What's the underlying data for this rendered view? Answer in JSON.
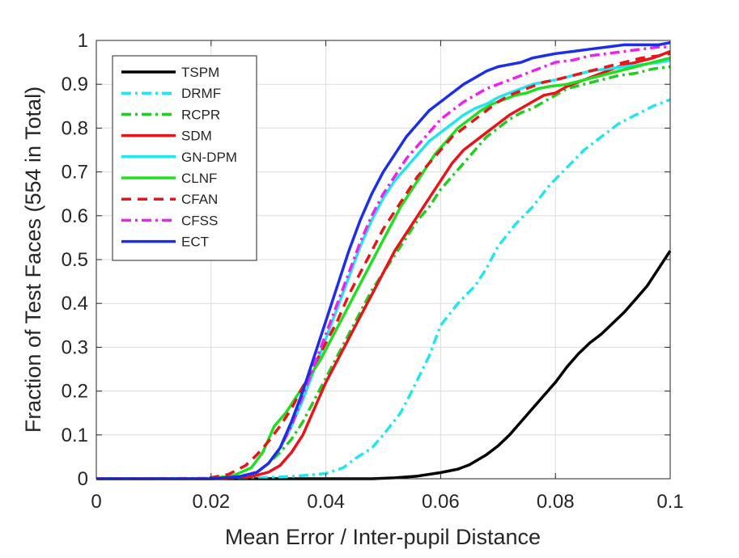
{
  "chart_data": {
    "type": "line",
    "xlabel": "Mean Error / Inter-pupil Distance",
    "ylabel": "Fraction of Test Faces (554 in Total)",
    "xlim": [
      0,
      0.1
    ],
    "ylim": [
      0,
      1
    ],
    "xticks": [
      0,
      0.02,
      0.04,
      0.06,
      0.08,
      0.1
    ],
    "xtick_labels": [
      "0",
      "0.02",
      "0.04",
      "0.06",
      "0.08",
      "0.1"
    ],
    "yticks": [
      0,
      0.1,
      0.2,
      0.3,
      0.4,
      0.5,
      0.6,
      0.7,
      0.8,
      0.9,
      1
    ],
    "ytick_labels": [
      "0",
      "0.1",
      "0.2",
      "0.3",
      "0.4",
      "0.5",
      "0.6",
      "0.7",
      "0.8",
      "0.9",
      "1"
    ],
    "grid": true,
    "legend_position": "top-left",
    "series": [
      {
        "name": "TSPM",
        "color": "#000000",
        "dash": "solid",
        "x": [
          0,
          0.048,
          0.052,
          0.056,
          0.06,
          0.063,
          0.065,
          0.068,
          0.07,
          0.072,
          0.074,
          0.076,
          0.078,
          0.08,
          0.082,
          0.084,
          0.086,
          0.088,
          0.09,
          0.092,
          0.094,
          0.096,
          0.098,
          0.1
        ],
        "y": [
          0,
          0,
          0.002,
          0.006,
          0.014,
          0.022,
          0.032,
          0.055,
          0.075,
          0.1,
          0.13,
          0.16,
          0.19,
          0.22,
          0.255,
          0.285,
          0.31,
          0.33,
          0.355,
          0.38,
          0.41,
          0.44,
          0.48,
          0.52
        ]
      },
      {
        "name": "DRMF",
        "color": "#22e5f0",
        "dash": "dashdot",
        "x": [
          0,
          0.028,
          0.035,
          0.04,
          0.043,
          0.045,
          0.048,
          0.05,
          0.053,
          0.055,
          0.058,
          0.06,
          0.063,
          0.066,
          0.068,
          0.07,
          0.073,
          0.076,
          0.079,
          0.082,
          0.085,
          0.088,
          0.091,
          0.094,
          0.097,
          0.1
        ],
        "y": [
          0,
          0.002,
          0.006,
          0.012,
          0.025,
          0.045,
          0.07,
          0.1,
          0.15,
          0.2,
          0.28,
          0.35,
          0.4,
          0.44,
          0.48,
          0.53,
          0.58,
          0.62,
          0.67,
          0.71,
          0.75,
          0.78,
          0.81,
          0.83,
          0.85,
          0.865
        ]
      },
      {
        "name": "RCPR",
        "color": "#22cc22",
        "dash": "dashdot",
        "x": [
          0,
          0.02,
          0.025,
          0.028,
          0.03,
          0.032,
          0.034,
          0.036,
          0.038,
          0.04,
          0.042,
          0.044,
          0.046,
          0.048,
          0.05,
          0.052,
          0.054,
          0.056,
          0.058,
          0.06,
          0.062,
          0.064,
          0.066,
          0.068,
          0.07,
          0.072,
          0.074,
          0.076,
          0.078,
          0.08,
          0.082,
          0.085,
          0.088,
          0.091,
          0.094,
          0.097,
          0.1
        ],
        "y": [
          0,
          0,
          0.005,
          0.015,
          0.035,
          0.06,
          0.09,
          0.13,
          0.18,
          0.23,
          0.28,
          0.33,
          0.38,
          0.43,
          0.47,
          0.51,
          0.55,
          0.59,
          0.62,
          0.66,
          0.69,
          0.72,
          0.75,
          0.78,
          0.8,
          0.82,
          0.835,
          0.845,
          0.86,
          0.875,
          0.89,
          0.9,
          0.91,
          0.92,
          0.925,
          0.935,
          0.94
        ]
      },
      {
        "name": "SDM",
        "color": "#e8141a",
        "dash": "solid",
        "x": [
          0,
          0.022,
          0.027,
          0.03,
          0.032,
          0.034,
          0.036,
          0.038,
          0.04,
          0.042,
          0.044,
          0.046,
          0.048,
          0.05,
          0.052,
          0.054,
          0.056,
          0.058,
          0.06,
          0.062,
          0.064,
          0.066,
          0.068,
          0.07,
          0.072,
          0.074,
          0.076,
          0.078,
          0.08,
          0.082,
          0.085,
          0.088,
          0.091,
          0.094,
          0.097,
          0.1
        ],
        "y": [
          0,
          0,
          0.005,
          0.015,
          0.03,
          0.06,
          0.1,
          0.16,
          0.22,
          0.27,
          0.32,
          0.37,
          0.42,
          0.47,
          0.52,
          0.56,
          0.6,
          0.64,
          0.68,
          0.72,
          0.75,
          0.77,
          0.79,
          0.81,
          0.83,
          0.845,
          0.86,
          0.875,
          0.88,
          0.895,
          0.91,
          0.925,
          0.94,
          0.95,
          0.96,
          0.975
        ]
      },
      {
        "name": "GN-DPM",
        "color": "#22e5f0",
        "dash": "solid",
        "x": [
          0,
          0.02,
          0.025,
          0.028,
          0.03,
          0.032,
          0.034,
          0.036,
          0.038,
          0.04,
          0.042,
          0.044,
          0.046,
          0.048,
          0.05,
          0.052,
          0.054,
          0.056,
          0.058,
          0.06,
          0.062,
          0.064,
          0.066,
          0.068,
          0.07,
          0.072,
          0.074,
          0.076,
          0.078,
          0.08,
          0.083,
          0.086,
          0.089,
          0.092,
          0.095,
          0.098,
          0.1
        ],
        "y": [
          0,
          0,
          0.005,
          0.015,
          0.035,
          0.07,
          0.12,
          0.18,
          0.25,
          0.32,
          0.39,
          0.46,
          0.53,
          0.59,
          0.64,
          0.68,
          0.71,
          0.74,
          0.77,
          0.79,
          0.81,
          0.83,
          0.845,
          0.855,
          0.87,
          0.88,
          0.89,
          0.9,
          0.905,
          0.91,
          0.92,
          0.93,
          0.935,
          0.94,
          0.945,
          0.95,
          0.955
        ]
      },
      {
        "name": "CLNF",
        "color": "#22dd22",
        "dash": "solid",
        "x": [
          0,
          0.02,
          0.024,
          0.027,
          0.029,
          0.031,
          0.033,
          0.035,
          0.037,
          0.039,
          0.041,
          0.043,
          0.045,
          0.047,
          0.049,
          0.051,
          0.053,
          0.055,
          0.057,
          0.059,
          0.061,
          0.063,
          0.065,
          0.067,
          0.069,
          0.071,
          0.073,
          0.075,
          0.077,
          0.079,
          0.082,
          0.085,
          0.088,
          0.091,
          0.094,
          0.097,
          0.1
        ],
        "y": [
          0,
          0,
          0.008,
          0.025,
          0.06,
          0.12,
          0.15,
          0.19,
          0.23,
          0.27,
          0.32,
          0.37,
          0.42,
          0.47,
          0.52,
          0.57,
          0.62,
          0.66,
          0.7,
          0.74,
          0.77,
          0.8,
          0.82,
          0.84,
          0.855,
          0.865,
          0.875,
          0.88,
          0.89,
          0.895,
          0.9,
          0.91,
          0.92,
          0.93,
          0.94,
          0.95,
          0.96
        ]
      },
      {
        "name": "CFAN",
        "color": "#e8141a",
        "dash": "dash",
        "x": [
          0,
          0.019,
          0.023,
          0.026,
          0.028,
          0.03,
          0.032,
          0.034,
          0.036,
          0.038,
          0.04,
          0.042,
          0.044,
          0.046,
          0.048,
          0.05,
          0.052,
          0.054,
          0.056,
          0.058,
          0.06,
          0.062,
          0.064,
          0.066,
          0.068,
          0.07,
          0.072,
          0.074,
          0.076,
          0.078,
          0.08,
          0.083,
          0.086,
          0.089,
          0.092,
          0.095,
          0.098,
          0.1
        ],
        "y": [
          0,
          0,
          0.01,
          0.03,
          0.055,
          0.085,
          0.12,
          0.16,
          0.21,
          0.26,
          0.31,
          0.36,
          0.42,
          0.47,
          0.52,
          0.57,
          0.61,
          0.65,
          0.69,
          0.72,
          0.75,
          0.78,
          0.8,
          0.82,
          0.84,
          0.86,
          0.875,
          0.885,
          0.895,
          0.905,
          0.91,
          0.92,
          0.93,
          0.94,
          0.95,
          0.96,
          0.965,
          0.97
        ]
      },
      {
        "name": "CFSS",
        "color": "#ee22ee",
        "dash": "dashdot",
        "x": [
          0,
          0.02,
          0.025,
          0.028,
          0.03,
          0.032,
          0.034,
          0.036,
          0.038,
          0.04,
          0.042,
          0.044,
          0.046,
          0.048,
          0.05,
          0.052,
          0.054,
          0.056,
          0.058,
          0.06,
          0.062,
          0.064,
          0.066,
          0.068,
          0.07,
          0.072,
          0.074,
          0.076,
          0.078,
          0.08,
          0.083,
          0.086,
          0.089,
          0.092,
          0.095,
          0.098,
          0.1
        ],
        "y": [
          0,
          0,
          0.005,
          0.015,
          0.035,
          0.07,
          0.12,
          0.19,
          0.26,
          0.33,
          0.4,
          0.47,
          0.54,
          0.6,
          0.65,
          0.69,
          0.73,
          0.76,
          0.79,
          0.82,
          0.84,
          0.86,
          0.875,
          0.89,
          0.9,
          0.91,
          0.92,
          0.93,
          0.94,
          0.95,
          0.955,
          0.965,
          0.97,
          0.975,
          0.98,
          0.985,
          0.985
        ]
      },
      {
        "name": "ECT",
        "color": "#1c2ee8",
        "dash": "solid",
        "x": [
          0,
          0.02,
          0.025,
          0.028,
          0.03,
          0.032,
          0.034,
          0.036,
          0.038,
          0.04,
          0.042,
          0.044,
          0.046,
          0.048,
          0.05,
          0.052,
          0.054,
          0.056,
          0.058,
          0.06,
          0.062,
          0.064,
          0.066,
          0.068,
          0.07,
          0.072,
          0.074,
          0.076,
          0.078,
          0.08,
          0.083,
          0.086,
          0.089,
          0.092,
          0.095,
          0.098,
          0.1
        ],
        "y": [
          0,
          0,
          0.005,
          0.015,
          0.035,
          0.07,
          0.13,
          0.2,
          0.28,
          0.36,
          0.44,
          0.52,
          0.59,
          0.65,
          0.7,
          0.74,
          0.78,
          0.81,
          0.84,
          0.86,
          0.88,
          0.9,
          0.915,
          0.93,
          0.94,
          0.945,
          0.95,
          0.96,
          0.965,
          0.97,
          0.975,
          0.98,
          0.985,
          0.99,
          0.99,
          0.99,
          0.995
        ]
      }
    ]
  }
}
